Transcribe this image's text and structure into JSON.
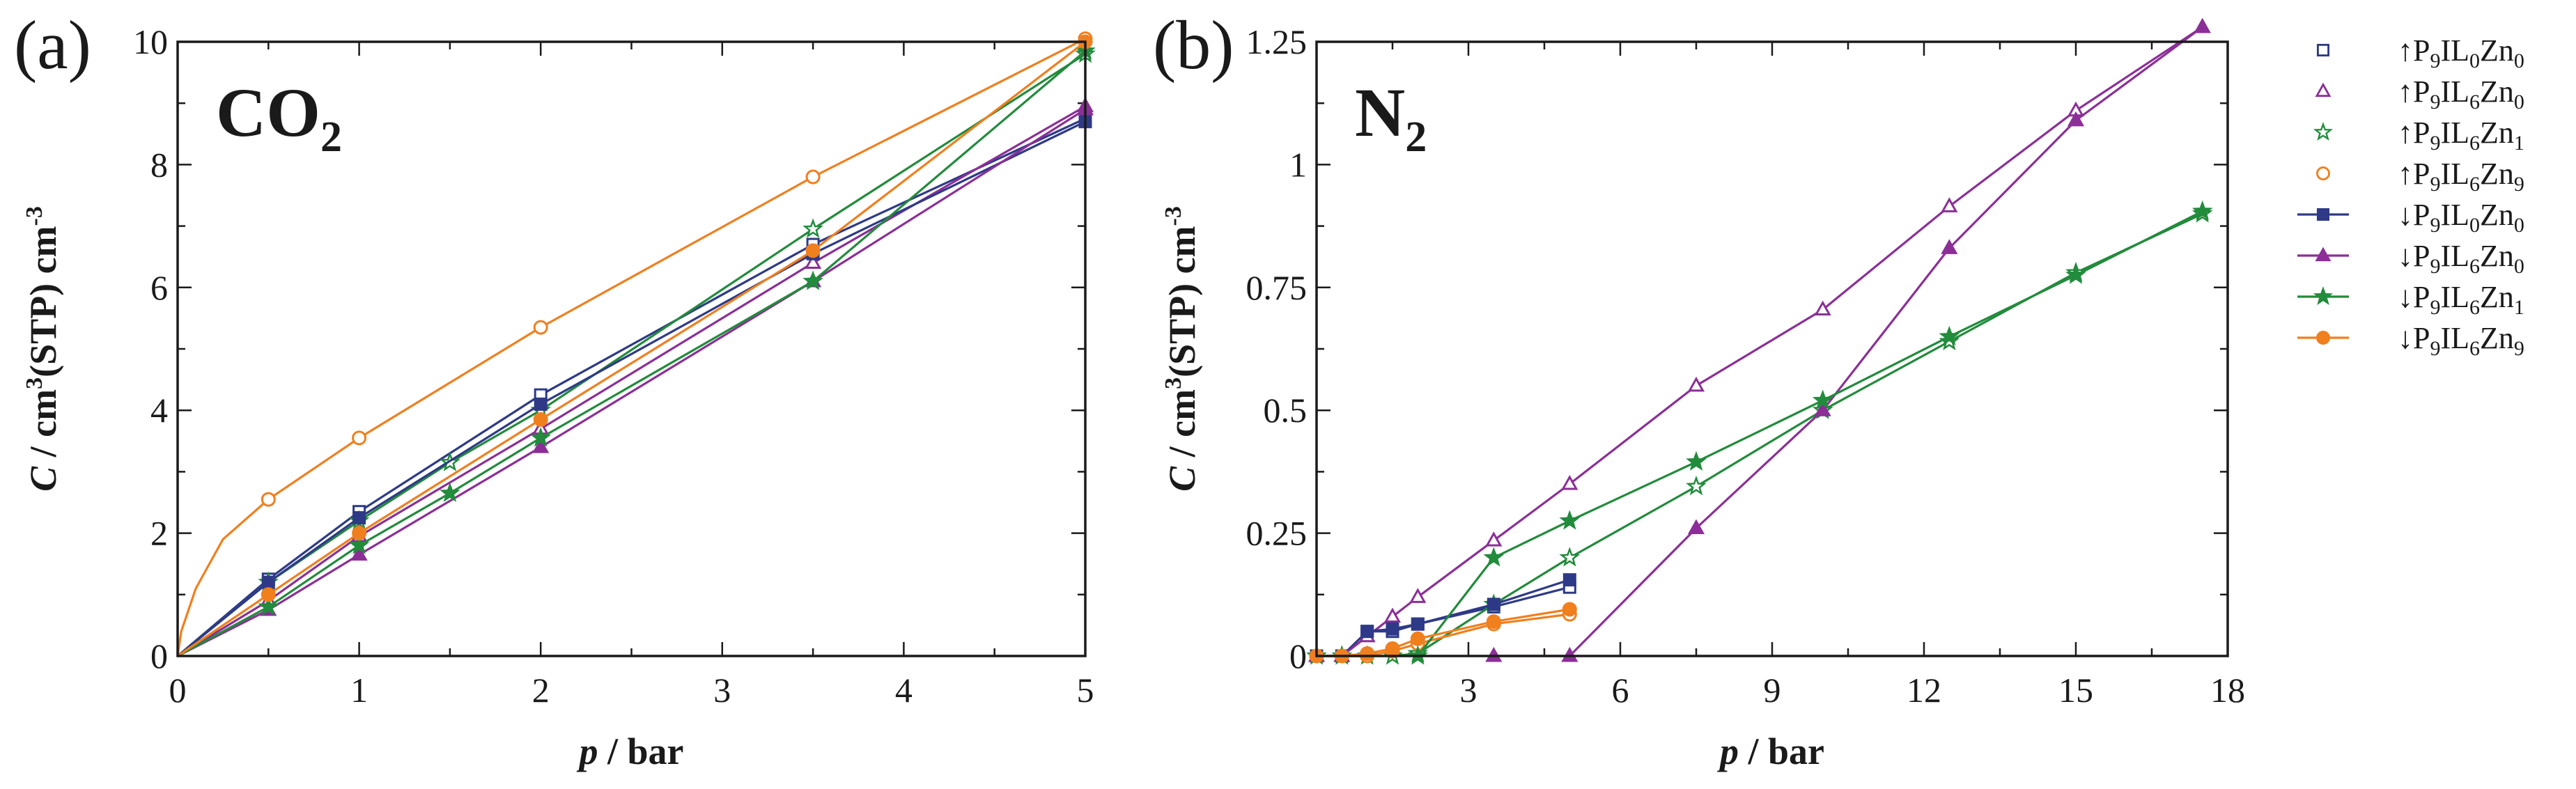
{
  "panels": [
    {
      "label": "(a)",
      "gas_main": "CO",
      "gas_sub": "2",
      "xlabel_var": "p",
      "xlabel_rest": " / bar",
      "ylabel_var": "C",
      "ylabel_rest": " / cm",
      "ylabel_sup": "3",
      "ylabel_rest2": "(STP) cm",
      "ylabel_sup2": "-3"
    },
    {
      "label": "(b)",
      "gas_main": "N",
      "gas_sub": "2",
      "xlabel_var": "p",
      "xlabel_rest": " / bar",
      "ylabel_var": "C",
      "ylabel_rest": " / cm",
      "ylabel_sup": "3",
      "ylabel_rest2": "(STP) cm",
      "ylabel_sup2": "-3"
    }
  ],
  "legend": [
    {
      "arrow": "↑",
      "parts": [
        [
          "P",
          ""
        ],
        [
          "9",
          "sub"
        ],
        [
          "IL",
          ""
        ],
        [
          "0",
          "sub"
        ],
        [
          "Zn",
          ""
        ],
        [
          "0",
          "sub"
        ]
      ],
      "color": "#2e3a87",
      "marker": "square",
      "filled": false,
      "line": false
    },
    {
      "arrow": "↑",
      "parts": [
        [
          "P",
          ""
        ],
        [
          "9",
          "sub"
        ],
        [
          "IL",
          ""
        ],
        [
          "6",
          "sub"
        ],
        [
          "Zn",
          ""
        ],
        [
          "0",
          "sub"
        ]
      ],
      "color": "#8b2f97",
      "marker": "triangle",
      "filled": false,
      "line": false
    },
    {
      "arrow": "↑",
      "parts": [
        [
          "P",
          ""
        ],
        [
          "9",
          "sub"
        ],
        [
          "IL",
          ""
        ],
        [
          "6",
          "sub"
        ],
        [
          "Zn",
          ""
        ],
        [
          "1",
          "sub"
        ]
      ],
      "color": "#228b3c",
      "marker": "star",
      "filled": false,
      "line": false
    },
    {
      "arrow": "↑",
      "parts": [
        [
          "P",
          ""
        ],
        [
          "9",
          "sub"
        ],
        [
          "IL",
          ""
        ],
        [
          "6",
          "sub"
        ],
        [
          "Zn",
          ""
        ],
        [
          "9",
          "sub"
        ]
      ],
      "color": "#f07f1e",
      "marker": "circle",
      "filled": false,
      "line": false
    },
    {
      "arrow": "↓",
      "parts": [
        [
          "P",
          ""
        ],
        [
          "9",
          "sub"
        ],
        [
          "IL",
          ""
        ],
        [
          "0",
          "sub"
        ],
        [
          "Zn",
          ""
        ],
        [
          "0",
          "sub"
        ]
      ],
      "color": "#2e3a87",
      "marker": "square",
      "filled": true,
      "line": true
    },
    {
      "arrow": "↓",
      "parts": [
        [
          "P",
          ""
        ],
        [
          "9",
          "sub"
        ],
        [
          "IL",
          ""
        ],
        [
          "6",
          "sub"
        ],
        [
          "Zn",
          ""
        ],
        [
          "0",
          "sub"
        ]
      ],
      "color": "#8b2f97",
      "marker": "triangle",
      "filled": true,
      "line": true
    },
    {
      "arrow": "↓",
      "parts": [
        [
          "P",
          ""
        ],
        [
          "9",
          "sub"
        ],
        [
          "IL",
          ""
        ],
        [
          "6",
          "sub"
        ],
        [
          "Zn",
          ""
        ],
        [
          "1",
          "sub"
        ]
      ],
      "color": "#228b3c",
      "marker": "star",
      "filled": true,
      "line": true
    },
    {
      "arrow": "↓",
      "parts": [
        [
          "P",
          ""
        ],
        [
          "9",
          "sub"
        ],
        [
          "IL",
          ""
        ],
        [
          "6",
          "sub"
        ],
        [
          "Zn",
          ""
        ],
        [
          "9",
          "sub"
        ]
      ],
      "color": "#f07f1e",
      "marker": "circle",
      "filled": true,
      "line": true
    }
  ],
  "chart_data": [
    {
      "type": "line",
      "panel": "(a)",
      "annotation": "CO2",
      "xlabel": "p / bar",
      "ylabel": "C / cm3(STP) cm-3",
      "xlim": [
        0,
        5
      ],
      "ylim": [
        0,
        10
      ],
      "xticks": [
        0,
        1,
        2,
        3,
        4,
        5
      ],
      "yticks": [
        0,
        2,
        4,
        6,
        8,
        10
      ],
      "ytick_labels": [
        "0",
        "2",
        "4",
        "6",
        "8",
        "10"
      ],
      "series": [
        {
          "name": "↑P9IL0Zn0",
          "color": "#2e3a87",
          "marker": "square",
          "filled": false,
          "x": [
            0,
            0.5,
            1,
            2,
            3.5,
            5
          ],
          "y": [
            0,
            1.25,
            2.35,
            4.25,
            6.7,
            8.75
          ]
        },
        {
          "name": "↑P9IL6Zn0",
          "color": "#8b2f97",
          "marker": "triangle",
          "filled": false,
          "x": [
            0,
            0.5,
            1,
            2,
            3.5,
            5
          ],
          "y": [
            0,
            0.9,
            1.95,
            3.7,
            6.4,
            8.95
          ]
        },
        {
          "name": "↑P9IL6Zn1",
          "color": "#228b3c",
          "marker": "star",
          "filled": false,
          "x": [
            0,
            0.5,
            1,
            1.5,
            2,
            3.5,
            5
          ],
          "y": [
            0,
            1.2,
            2.2,
            3.15,
            4.0,
            6.95,
            9.8
          ]
        },
        {
          "name": "↑P9IL6Zn9",
          "color": "#f07f1e",
          "marker": "circle",
          "filled": false,
          "x": [
            0,
            0.02,
            0.1,
            0.25,
            0.5,
            1,
            2,
            3.5,
            5
          ],
          "y": [
            0,
            0.4,
            1.1,
            1.9,
            2.55,
            3.55,
            5.35,
            7.8,
            10.05
          ]
        },
        {
          "name": "↓P9IL0Zn0",
          "color": "#2e3a87",
          "marker": "square",
          "filled": true,
          "x": [
            0,
            0.5,
            1,
            2,
            3.5,
            5
          ],
          "y": [
            0,
            1.2,
            2.25,
            4.1,
            6.55,
            8.7
          ]
        },
        {
          "name": "↓P9IL6Zn0",
          "color": "#8b2f97",
          "marker": "triangle",
          "filled": true,
          "x": [
            0,
            0.5,
            1,
            2,
            3.5,
            5
          ],
          "y": [
            0,
            0.75,
            1.65,
            3.4,
            6.1,
            8.9
          ]
        },
        {
          "name": "↓P9IL6Zn1",
          "color": "#228b3c",
          "marker": "star",
          "filled": true,
          "x": [
            0,
            0.5,
            1,
            1.5,
            2,
            3.5,
            5
          ],
          "y": [
            0,
            0.8,
            1.8,
            2.65,
            3.55,
            6.1,
            9.85
          ]
        },
        {
          "name": "↓P9IL6Zn9",
          "color": "#f07f1e",
          "marker": "circle",
          "filled": true,
          "x": [
            0,
            0.5,
            1,
            2,
            3.5,
            5
          ],
          "y": [
            0,
            1.0,
            2.0,
            3.85,
            6.6,
            10.0
          ]
        }
      ]
    },
    {
      "type": "line",
      "panel": "(b)",
      "annotation": "N2",
      "xlabel": "p / bar",
      "ylabel": "C / cm3(STP) cm-3",
      "xlim": [
        0,
        18
      ],
      "ylim": [
        0,
        1.25
      ],
      "xticks": [
        3,
        6,
        9,
        12,
        15,
        18
      ],
      "yticks": [
        0,
        0.25,
        0.5,
        0.75,
        1,
        1.25
      ],
      "ytick_labels": [
        "0",
        "0.25",
        "0.5",
        "0.75",
        "1",
        "1.25"
      ],
      "series": [
        {
          "name": "↑P9IL0Zn0",
          "color": "#2e3a87",
          "marker": "square",
          "filled": false,
          "x": [
            0,
            0.5,
            1,
            1.5,
            2,
            3.5,
            5
          ],
          "y": [
            0,
            0,
            0.05,
            0.05,
            0.065,
            0.1,
            0.14
          ]
        },
        {
          "name": "↑P9IL6Zn0",
          "color": "#8b2f97",
          "marker": "triangle",
          "filled": false,
          "x": [
            0,
            0.5,
            1,
            1.5,
            2,
            3.5,
            5,
            7.5,
            10,
            12.5,
            15,
            17.5
          ],
          "y": [
            0,
            0,
            0.04,
            0.08,
            0.12,
            0.235,
            0.35,
            0.55,
            0.705,
            0.915,
            1.11,
            1.28
          ]
        },
        {
          "name": "↑P9IL6Zn1",
          "color": "#228b3c",
          "marker": "star",
          "filled": false,
          "x": [
            0,
            0.5,
            1,
            1.5,
            2,
            3.5,
            5,
            7.5,
            10,
            12.5,
            15,
            17.5
          ],
          "y": [
            0,
            0,
            0,
            0,
            0.005,
            0.105,
            0.2,
            0.345,
            0.5,
            0.64,
            0.78,
            0.9
          ]
        },
        {
          "name": "↑P9IL6Zn9",
          "color": "#f07f1e",
          "marker": "circle",
          "filled": false,
          "x": [
            0,
            0.5,
            1,
            1.5,
            2,
            3.5,
            5
          ],
          "y": [
            0,
            0,
            0,
            0.01,
            0.025,
            0.065,
            0.085
          ]
        },
        {
          "name": "↓P9IL0Zn0",
          "color": "#2e3a87",
          "marker": "square",
          "filled": true,
          "x": [
            1,
            1.5,
            2,
            3.5,
            5
          ],
          "y": [
            0.05,
            0.055,
            0.065,
            0.105,
            0.155
          ]
        },
        {
          "name": "↓P9IL6Zn0",
          "color": "#8b2f97",
          "marker": "triangle",
          "filled": true,
          "x": [
            3.5,
            5,
            7.5,
            10,
            12.5,
            15,
            17.5
          ],
          "y": [
            0,
            0,
            0.26,
            0.5,
            0.83,
            1.09,
            1.28
          ]
        },
        {
          "name": "↓P9IL6Zn1",
          "color": "#228b3c",
          "marker": "star",
          "filled": true,
          "x": [
            2,
            3.5,
            5,
            7.5,
            10,
            12.5,
            15,
            17.5
          ],
          "y": [
            0,
            0.2,
            0.275,
            0.395,
            0.52,
            0.65,
            0.775,
            0.905
          ]
        },
        {
          "name": "↓P9IL6Zn9",
          "color": "#f07f1e",
          "marker": "circle",
          "filled": true,
          "x": [
            0,
            0.5,
            1,
            1.5,
            2,
            3.5,
            5
          ],
          "y": [
            0,
            0,
            0.005,
            0.015,
            0.035,
            0.07,
            0.095
          ]
        }
      ]
    }
  ]
}
